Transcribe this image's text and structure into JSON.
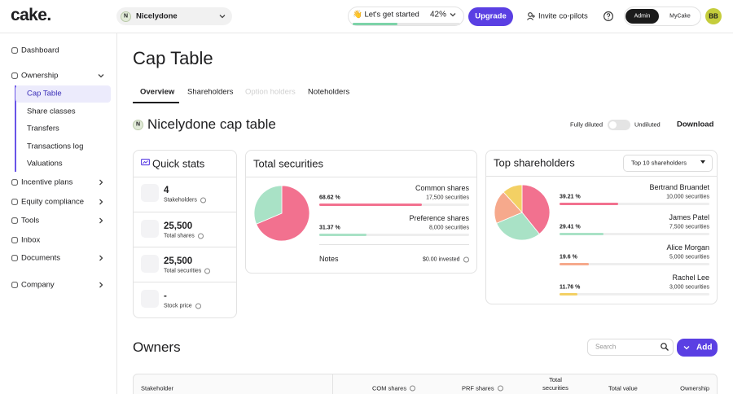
{
  "header": {
    "logo": "cake.",
    "workspace": {
      "initial": "N",
      "name": "Nicelydone"
    },
    "onboarding": {
      "label": "👋 Let's get started",
      "progress": {
        "value": 42,
        "label": "42%"
      },
      "color": "#7dd3a8"
    },
    "upgrade": "Upgrade",
    "invite": "Invite co-pilots",
    "roles": [
      "Admin",
      "MyCake"
    ],
    "avatar": "BB"
  },
  "sidebar": {
    "items": [
      "Dashboard",
      "Ownership",
      "Incentive plans",
      "Equity compliance",
      "Tools",
      "Inbox",
      "Documents",
      "Company"
    ],
    "ownership_items": [
      "Cap Table",
      "Share classes",
      "Transfers",
      "Transactions log",
      "Valuations"
    ]
  },
  "page": {
    "title": "Cap Table",
    "tabs": [
      "Overview",
      "Shareholders",
      "Option holders",
      "Noteholders"
    ],
    "company_initial": "N",
    "company_title": "Nicelydone cap table",
    "toggle": [
      "Fully diluted",
      "Undiluted"
    ],
    "download": "Download"
  },
  "quick_stats": {
    "title": "Quick stats",
    "items": [
      {
        "value": "4",
        "label": "Stakeholders"
      },
      {
        "value": "25,500",
        "label": "Total shares"
      },
      {
        "value": "25,500",
        "label": "Total securities"
      },
      {
        "value": "-",
        "label": "Stock price"
      }
    ]
  },
  "total_securities": {
    "title": "Total securities",
    "classes": [
      {
        "name": "Common shares",
        "securities": "17,500 securities",
        "percent": {
          "value": 68.62,
          "label": "68.62 %"
        },
        "color": "#f2718f"
      },
      {
        "name": "Preference shares",
        "securities": "8,000 securities",
        "percent": {
          "value": 31.37,
          "label": "31.37 %"
        },
        "color": "#a9e2c6"
      }
    ],
    "notes": "Notes",
    "invested": "$0.00 invested"
  },
  "top_shareholders": {
    "title": "Top shareholders",
    "filter": "Top 10 shareholders",
    "holders": [
      {
        "name": "Bertrand Bruandet",
        "securities": "10,000 securities",
        "percent": {
          "value": 39.21,
          "label": "39.21 %"
        },
        "color": "#f2718f"
      },
      {
        "name": "James Patel",
        "securities": "7,500 securities",
        "percent": {
          "value": 29.41,
          "label": "29.41 %"
        },
        "color": "#a9e2c6"
      },
      {
        "name": "Alice Morgan",
        "securities": "5,000 securities",
        "percent": {
          "value": 19.6,
          "label": "19.6 %"
        },
        "color": "#f6a98c"
      },
      {
        "name": "Rachel Lee",
        "securities": "3,000 securities",
        "percent": {
          "value": 11.76,
          "label": "11.76 %"
        },
        "color": "#f3d064"
      }
    ]
  },
  "owners": {
    "title": "Owners",
    "search": "Search",
    "add": "Add",
    "columns": [
      "Stakeholder",
      "COM shares",
      "PRF shares",
      "Total securities",
      "Total value",
      "Ownership"
    ]
  }
}
